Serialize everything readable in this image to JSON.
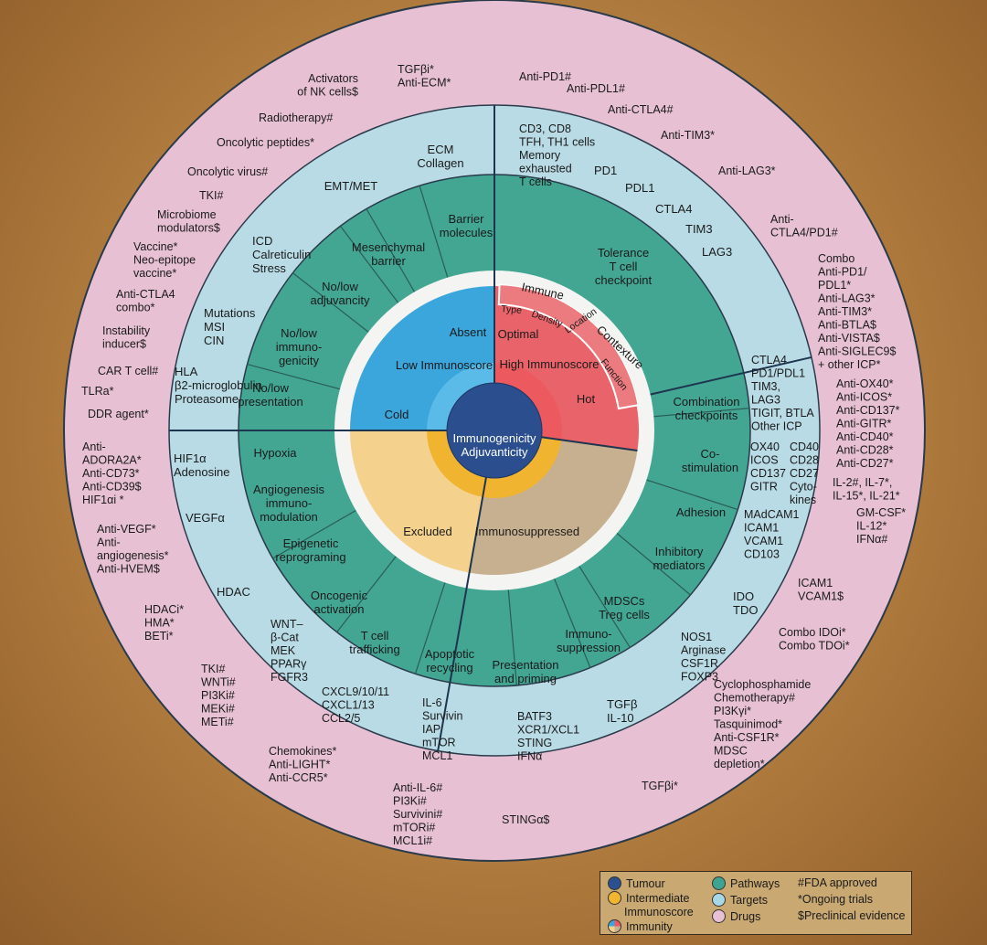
{
  "center": {
    "line1": "Immunogenicity",
    "line2": "Adjuvanticity"
  },
  "quadrants": {
    "absent": "Absent",
    "low": "Low Immunoscore",
    "cold": "Cold",
    "optimal": "Optimal",
    "high": "High Immunoscore",
    "hot": "Hot",
    "excluded": "Excluded",
    "immunosuppressed": "Immunosuppressed"
  },
  "contexture": {
    "immune": "Immune",
    "contexture": "Contexture",
    "tags": [
      "Type",
      "Density",
      "Location",
      "Function"
    ]
  },
  "pathways": {
    "barrier": [
      "Barrier",
      "molecules"
    ],
    "mesenchymal": [
      "Mesenchymal",
      "barrier"
    ],
    "adjuvancity": [
      "No/low",
      "adjuvancity"
    ],
    "immunogenicity": [
      "No/low",
      "immuno-",
      "genicity"
    ],
    "presentation": [
      "No/low",
      "presentation"
    ],
    "tolerance": [
      "Tolerance",
      "T cell",
      "checkpoint"
    ],
    "combination": [
      "Combination",
      "checkpoints"
    ],
    "costim": [
      "Co-",
      "stimulation"
    ],
    "adhesion": [
      "Adhesion"
    ],
    "inhibitory": [
      "Inhibitory",
      "mediators"
    ],
    "mdscs": [
      "MDSCs",
      "Treg cells"
    ],
    "immunosupp": [
      "Immuno-",
      "suppression"
    ],
    "presprim": [
      "Presentation",
      "and priming"
    ],
    "apoptotic": [
      "Apoptotic",
      "recycling"
    ],
    "trafficking": [
      "T cell",
      "trafficking"
    ],
    "oncogenic": [
      "Oncogenic",
      "activation"
    ],
    "epigenetic": [
      "Epigenetic",
      "reprograming"
    ],
    "angio": [
      "Angiogenesis",
      "immuno-",
      "modulation"
    ],
    "hypoxia": [
      "Hypoxia"
    ]
  },
  "targets": {
    "ecm": [
      "ECM",
      "Collagen"
    ],
    "emt": [
      "EMT/MET"
    ],
    "icd": [
      "ICD",
      "Calreticulin",
      "Stress"
    ],
    "mutations": [
      "Mutations",
      "MSI",
      "CIN"
    ],
    "hla": [
      "HLA",
      "β2-microglobulin",
      "Proteasome"
    ],
    "cd3": [
      "CD3, CD8",
      "TFH, TH1 cells",
      "Memory",
      "exhausted",
      "T cells"
    ],
    "pd1": [
      "PD1"
    ],
    "pdl1": [
      "PDL1"
    ],
    "ctla4": [
      "CTLA4"
    ],
    "tim3": [
      "TIM3"
    ],
    "lag3": [
      "LAG3"
    ],
    "checkpoints": [
      "CTLA4",
      "PD1/PDL1",
      "TIM3,",
      "LAG3",
      "TIGIT, BTLA",
      "Other ICP"
    ],
    "costimA": [
      "OX40",
      "ICOS",
      "CD137",
      "GITR"
    ],
    "costimB": [
      "CD40",
      "CD28",
      "CD27",
      "Cyto-",
      "kines"
    ],
    "adhesion": [
      "MAdCAM1",
      "ICAM1",
      "VCAM1",
      "CD103"
    ],
    "ido": [
      "IDO",
      "TDO"
    ],
    "nos": [
      "NOS1",
      "Arginase",
      "CSF1R",
      "FOXP3"
    ],
    "tgfb": [
      "TGFβ",
      "IL-10"
    ],
    "batf3": [
      "BATF3",
      "XCR1/XCL1",
      "STING",
      "IFNα"
    ],
    "il6": [
      "IL-6",
      "Survivin",
      "IAP",
      "mTOR",
      "MCL1"
    ],
    "cxcl": [
      "CXCL9/10/11",
      "CXCL1/13",
      "CCL2/5"
    ],
    "wnt": [
      "WNT–",
      "β-Cat",
      "MEK",
      "PPARγ",
      "FGFR3"
    ],
    "hdac": [
      "HDAC"
    ],
    "vegf": [
      "VEGFα"
    ],
    "hif": [
      "HIF1α",
      "Adenosine"
    ]
  },
  "drugs": {
    "nk": [
      "Activators",
      "of NK cells$"
    ],
    "tgfbi_top": [
      "TGFβi*",
      "Anti-ECM*"
    ],
    "radio": [
      "Radiotherapy#"
    ],
    "peptides": [
      "Oncolytic peptides*"
    ],
    "virus": [
      "Oncolytic virus#"
    ],
    "tki": [
      "TKI#"
    ],
    "microbiome": [
      "Microbiome",
      "modulators$"
    ],
    "vaccine": [
      "Vaccine*",
      "Neo-epitope",
      "vaccine*"
    ],
    "actla4": [
      "Anti-CTLA4",
      "combo*"
    ],
    "instability": [
      "Instability",
      "inducer$"
    ],
    "cart": [
      "CAR T cell#"
    ],
    "tlra": [
      "TLRa*"
    ],
    "ddr": [
      "DDR agent*"
    ],
    "apd1": [
      "Anti-PD1#"
    ],
    "apdl1": [
      "Anti-PDL1#"
    ],
    "actla4b": [
      "Anti-CTLA4#"
    ],
    "atim3": [
      "Anti-TIM3*"
    ],
    "alag3": [
      "Anti-LAG3*"
    ],
    "actlapd": [
      "Anti-",
      "CTLA4/PD1#"
    ],
    "combo": [
      "Combo",
      "Anti-PD1/",
      "PDL1*",
      "Anti-LAG3*",
      "Anti-TIM3*",
      "Anti-BTLA$",
      "Anti-VISTA$",
      "Anti-SIGLEC9$",
      "+ other ICP*"
    ],
    "agonists": [
      "Anti-OX40*",
      "Anti-ICOS*",
      "Anti-CD137*",
      "Anti-GITR*",
      "Anti-CD40*",
      "Anti-CD28*",
      "Anti-CD27*"
    ],
    "il": [
      "IL-2#, IL-7*,",
      "IL-15*, IL-21*"
    ],
    "gmcsf": [
      "GM-CSF*",
      "IL-12*",
      "IFNα#"
    ],
    "icam": [
      "ICAM1",
      "VCAM1$"
    ],
    "ido": [
      "Combo IDOi*",
      "Combo TDOi*"
    ],
    "cyclo": [
      "Cyclophosphamide",
      "Chemotherapy#",
      "PI3Kγi*",
      "Tasquinimod*",
      "Anti-CSF1R*",
      "MDSC",
      "depletion*"
    ],
    "tgfbi_bot": [
      "TGFβi*"
    ],
    "sting": [
      "STINGα$"
    ],
    "antiil6": [
      "Anti-IL-6#",
      "PI3Ki#",
      "Survivini#",
      "mTORi#",
      "MCL1i#"
    ],
    "chemokines": [
      "Chemokines*",
      "Anti-LIGHT*",
      "Anti-CCR5*"
    ],
    "tki2": [
      "TKI#",
      "WNTi#",
      "PI3Ki#",
      "MEKi#",
      "METi#"
    ],
    "hdaci": [
      "HDACi*",
      "HMA*",
      "BETi*"
    ],
    "vegfa": [
      "Anti-VEGF*",
      "Anti-",
      "angiogenesis*",
      "Anti-HVEM$"
    ],
    "adora": [
      "Anti-",
      "ADORA2A*",
      "Anti-CD73*",
      "Anti-CD39$",
      "HIF1αi *"
    ]
  },
  "legend": {
    "items": [
      {
        "label": "Tumour",
        "color": "#2c4f8f"
      },
      {
        "label": "Intermediate",
        "color": "#f2b530"
      },
      {
        "label": "Immunoscore",
        "color": ""
      },
      {
        "label": "Immunity",
        "color": "quad"
      },
      {
        "label": "Pathways",
        "color": "#3fa391"
      },
      {
        "label": "Targets",
        "color": "#a9d7e6"
      },
      {
        "label": "Drugs",
        "color": "#e7c1d3"
      }
    ],
    "notes": [
      "#FDA approved",
      "*Ongoing trials",
      "$Preclinical evidence"
    ]
  },
  "colors": {
    "drugs": "#e7c1d3",
    "targets": "#b9dbe6",
    "pathways": "#43a693",
    "white": "#f4f4f2",
    "absent": "#3aa6dc",
    "optimal": "#e9646a",
    "excluded": "#f4d28e",
    "immunosuppressed": "#c7b08f",
    "core": "#2b4e8e",
    "intermediate": "#f1b431",
    "innerLight": "#5bbbe8",
    "innerRed": "#ec5a5f"
  }
}
